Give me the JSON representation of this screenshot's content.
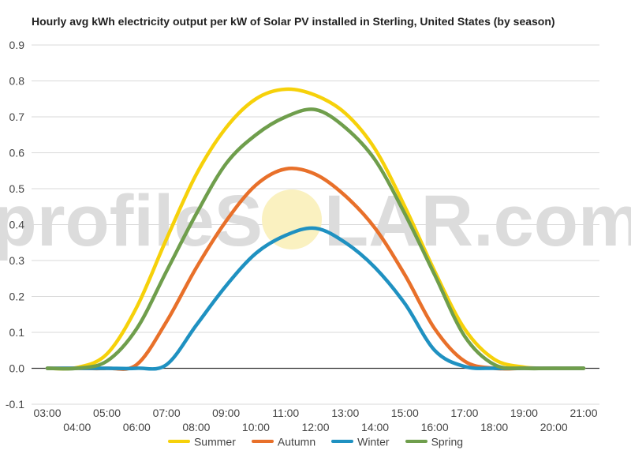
{
  "colors": {
    "grid": "#d9d9d9",
    "zero_line": "#333333",
    "tick": "#444444",
    "watermark_text": "#dcdcdc",
    "watermark_sun": "#faf1c0"
  },
  "watermark": {
    "prefix": "profileS",
    "suffix": "LAR.com"
  },
  "chart_data": {
    "type": "line",
    "title": "Hourly avg kWh electricity output per kW of Solar PV installed in Sterling, United States (by season)",
    "xlabel": "",
    "ylabel": "",
    "x": [
      "03:00",
      "04:00",
      "05:00",
      "06:00",
      "07:00",
      "08:00",
      "09:00",
      "10:00",
      "11:00",
      "12:00",
      "13:00",
      "14:00",
      "15:00",
      "16:00",
      "17:00",
      "18:00",
      "19:00",
      "20:00",
      "21:00"
    ],
    "x_tick_labels_upper": [
      "03:00",
      "05:00",
      "07:00",
      "09:00",
      "11:00",
      "13:00",
      "15:00",
      "17:00",
      "19:00",
      "21:00"
    ],
    "x_tick_labels_lower": [
      "04:00",
      "06:00",
      "08:00",
      "10:00",
      "12:00",
      "14:00",
      "16:00",
      "18:00",
      "20:00"
    ],
    "ylim": [
      -0.1,
      0.9
    ],
    "yticks": [
      "0.9",
      "0.8",
      "0.7",
      "0.6",
      "0.5",
      "0.4",
      "0.3",
      "0.2",
      "0.1",
      "0.0",
      "-0.1"
    ],
    "ytick_values": [
      0.9,
      0.8,
      0.7,
      0.6,
      0.5,
      0.4,
      0.3,
      0.2,
      0.1,
      0.0,
      -0.1
    ],
    "grid": true,
    "legend_position": "bottom",
    "series": [
      {
        "name": "Summer",
        "color": "#f6d10a",
        "values": [
          0.0,
          0.002,
          0.04,
          0.17,
          0.36,
          0.54,
          0.67,
          0.75,
          0.777,
          0.76,
          0.71,
          0.61,
          0.45,
          0.27,
          0.11,
          0.025,
          0.003,
          0.0,
          0.0
        ]
      },
      {
        "name": "Autumn",
        "color": "#e8702a",
        "values": [
          0.0,
          0.0,
          0.0,
          0.01,
          0.13,
          0.28,
          0.41,
          0.51,
          0.555,
          0.54,
          0.48,
          0.39,
          0.26,
          0.11,
          0.02,
          0.0,
          0.0,
          0.0,
          0.0
        ]
      },
      {
        "name": "Winter",
        "color": "#1f91c1",
        "values": [
          0.0,
          0.0,
          0.0,
          0.0,
          0.01,
          0.12,
          0.23,
          0.32,
          0.37,
          0.39,
          0.35,
          0.28,
          0.18,
          0.05,
          0.005,
          0.0,
          0.0,
          0.0,
          0.0
        ]
      },
      {
        "name": "Spring",
        "color": "#6f9e4c",
        "values": [
          0.0,
          0.0,
          0.02,
          0.11,
          0.27,
          0.43,
          0.57,
          0.65,
          0.7,
          0.72,
          0.67,
          0.58,
          0.43,
          0.26,
          0.09,
          0.01,
          0.0,
          0.0,
          0.0
        ]
      }
    ]
  }
}
